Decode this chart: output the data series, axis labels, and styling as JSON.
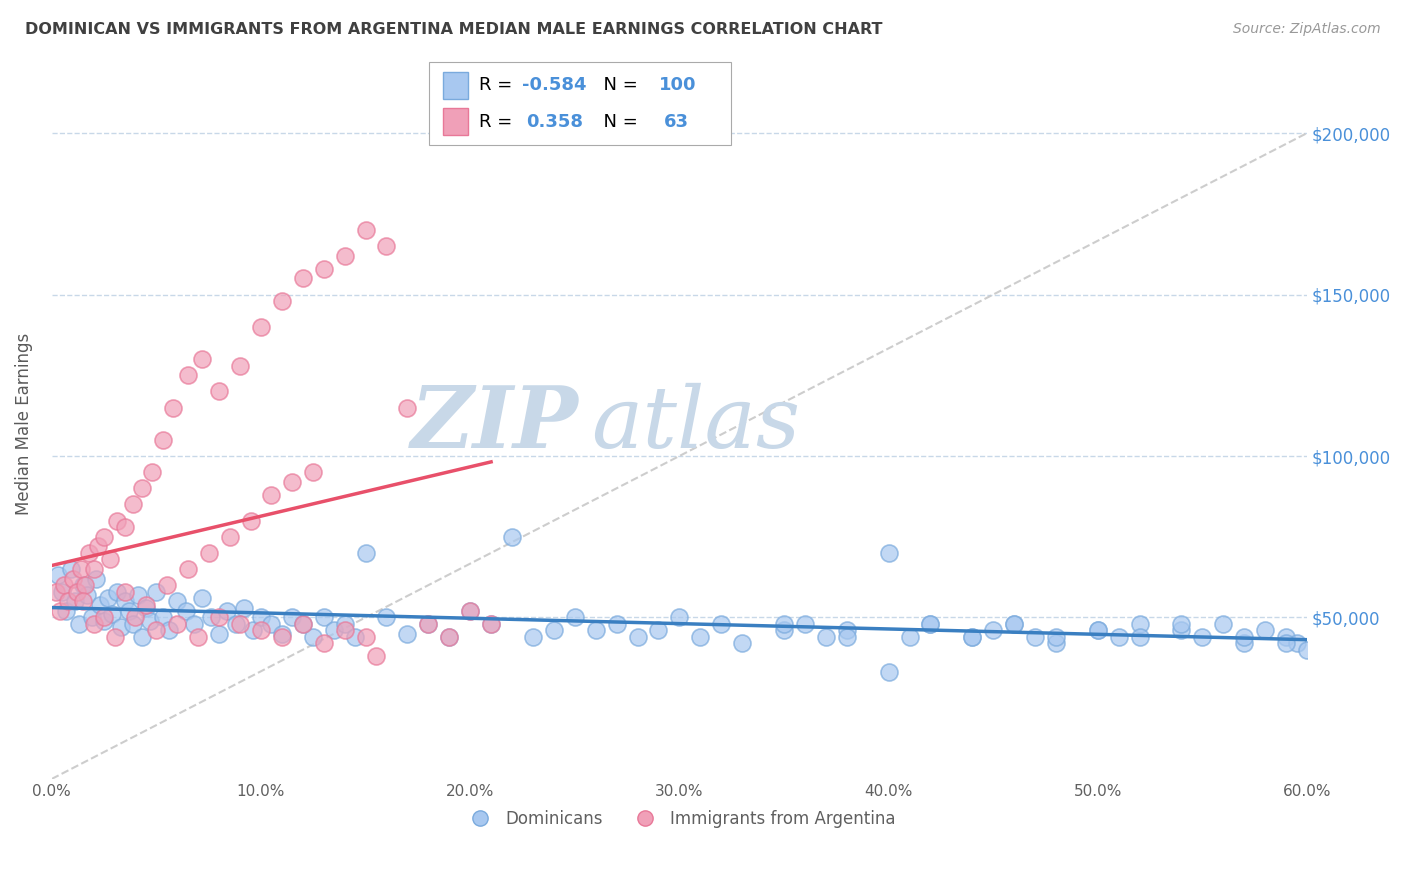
{
  "title": "DOMINICAN VS IMMIGRANTS FROM ARGENTINA MEDIAN MALE EARNINGS CORRELATION CHART",
  "source": "Source: ZipAtlas.com",
  "ylabel": "Median Male Earnings",
  "xlabel_ticks": [
    "0.0%",
    "10.0%",
    "20.0%",
    "30.0%",
    "40.0%",
    "50.0%",
    "60.0%"
  ],
  "xlabel_vals": [
    0.0,
    10.0,
    20.0,
    30.0,
    40.0,
    50.0,
    60.0
  ],
  "ytick_vals": [
    0,
    50000,
    100000,
    150000,
    200000
  ],
  "ytick_labels": [
    "",
    "$50,000",
    "$100,000",
    "$150,000",
    "$200,000"
  ],
  "legend_blue_R": "-0.584",
  "legend_blue_N": "100",
  "legend_pink_R": "0.358",
  "legend_pink_N": "63",
  "legend_label_blue": "Dominicans",
  "legend_label_pink": "Immigrants from Argentina",
  "blue_color": "#a8c8f0",
  "pink_color": "#f0a0b8",
  "blue_edge_color": "#7aaadd",
  "pink_edge_color": "#e87898",
  "blue_line_color": "#3a7fc1",
  "pink_line_color": "#e8506a",
  "ref_line_color": "#c8c8c8",
  "title_color": "#404040",
  "axis_label_color": "#5a5a5a",
  "tick_color_right": "#4a90d9",
  "legend_text_blue": "#4a90d9",
  "background_color": "#ffffff",
  "watermark_zip": "ZIP",
  "watermark_atlas": "atlas",
  "watermark_color": "#c8d8e8",
  "xlim": [
    0,
    60
  ],
  "ylim": [
    0,
    220000
  ],
  "blue_scatter_x": [
    0.3,
    0.5,
    0.7,
    0.9,
    1.1,
    1.3,
    1.5,
    1.7,
    1.9,
    2.1,
    2.3,
    2.5,
    2.7,
    2.9,
    3.1,
    3.3,
    3.5,
    3.7,
    3.9,
    4.1,
    4.3,
    4.5,
    4.7,
    5.0,
    5.3,
    5.6,
    6.0,
    6.4,
    6.8,
    7.2,
    7.6,
    8.0,
    8.4,
    8.8,
    9.2,
    9.6,
    10.0,
    10.5,
    11.0,
    11.5,
    12.0,
    12.5,
    13.0,
    13.5,
    14.0,
    14.5,
    15.0,
    16.0,
    17.0,
    18.0,
    19.0,
    20.0,
    21.0,
    22.0,
    23.0,
    24.0,
    25.0,
    26.0,
    27.0,
    28.0,
    29.0,
    30.0,
    31.0,
    32.0,
    33.0,
    35.0,
    36.0,
    37.0,
    38.0,
    40.0,
    41.0,
    42.0,
    44.0,
    45.0,
    46.0,
    47.0,
    48.0,
    50.0,
    51.0,
    52.0,
    54.0,
    55.0,
    56.0,
    57.0,
    58.0,
    59.0,
    59.5,
    35.0,
    38.0,
    40.0,
    42.0,
    44.0,
    46.0,
    48.0,
    50.0,
    52.0,
    54.0,
    57.0,
    59.0,
    60.0
  ],
  "blue_scatter_y": [
    63000,
    58000,
    52000,
    65000,
    55000,
    48000,
    60000,
    57000,
    50000,
    62000,
    54000,
    49000,
    56000,
    51000,
    58000,
    47000,
    55000,
    52000,
    48000,
    57000,
    44000,
    53000,
    49000,
    58000,
    50000,
    46000,
    55000,
    52000,
    48000,
    56000,
    50000,
    45000,
    52000,
    48000,
    53000,
    46000,
    50000,
    48000,
    45000,
    50000,
    48000,
    44000,
    50000,
    46000,
    48000,
    44000,
    70000,
    50000,
    45000,
    48000,
    44000,
    52000,
    48000,
    75000,
    44000,
    46000,
    50000,
    46000,
    48000,
    44000,
    46000,
    50000,
    44000,
    48000,
    42000,
    46000,
    48000,
    44000,
    46000,
    70000,
    44000,
    48000,
    44000,
    46000,
    48000,
    44000,
    42000,
    46000,
    44000,
    48000,
    46000,
    44000,
    48000,
    42000,
    46000,
    44000,
    42000,
    48000,
    44000,
    33000,
    48000,
    44000,
    48000,
    44000,
    46000,
    44000,
    48000,
    44000,
    42000,
    40000
  ],
  "pink_scatter_x": [
    0.2,
    0.4,
    0.6,
    0.8,
    1.0,
    1.2,
    1.4,
    1.6,
    1.8,
    2.0,
    2.2,
    2.5,
    2.8,
    3.1,
    3.5,
    3.9,
    4.3,
    4.8,
    5.3,
    5.8,
    6.5,
    7.2,
    8.0,
    9.0,
    10.0,
    11.0,
    12.0,
    13.0,
    14.0,
    15.0,
    16.0,
    17.0,
    18.0,
    19.0,
    20.0,
    21.0,
    2.0,
    3.0,
    4.0,
    5.0,
    6.0,
    7.0,
    8.0,
    9.0,
    10.0,
    11.0,
    12.0,
    13.0,
    14.0,
    15.0,
    1.5,
    2.5,
    3.5,
    4.5,
    5.5,
    6.5,
    7.5,
    8.5,
    9.5,
    10.5,
    11.5,
    12.5,
    15.5
  ],
  "pink_scatter_y": [
    58000,
    52000,
    60000,
    55000,
    62000,
    58000,
    65000,
    60000,
    70000,
    65000,
    72000,
    75000,
    68000,
    80000,
    78000,
    85000,
    90000,
    95000,
    105000,
    115000,
    125000,
    130000,
    120000,
    128000,
    140000,
    148000,
    155000,
    158000,
    162000,
    170000,
    165000,
    115000,
    48000,
    44000,
    52000,
    48000,
    48000,
    44000,
    50000,
    46000,
    48000,
    44000,
    50000,
    48000,
    46000,
    44000,
    48000,
    42000,
    46000,
    44000,
    55000,
    50000,
    58000,
    54000,
    60000,
    65000,
    70000,
    75000,
    80000,
    88000,
    92000,
    95000,
    38000
  ]
}
